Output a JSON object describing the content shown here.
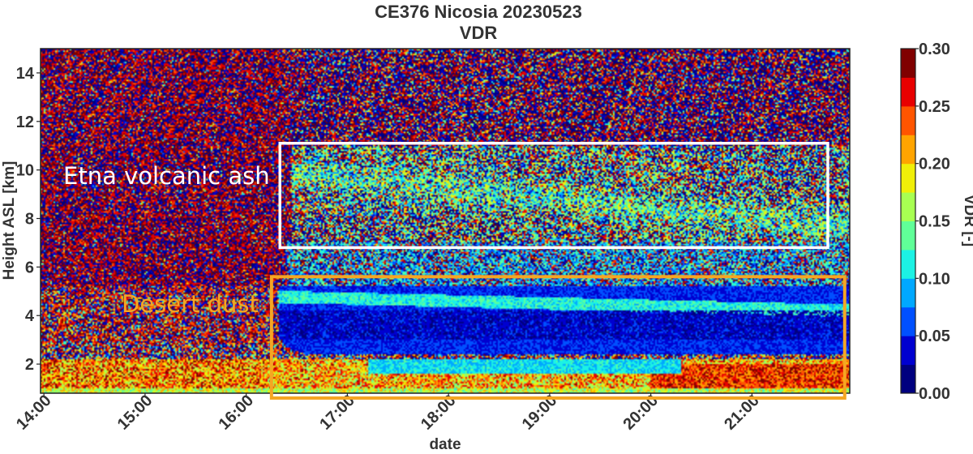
{
  "chart_data": {
    "type": "heatmap",
    "title": "CE376 Nicosia 20230523",
    "subtitle": "VDR",
    "xlabel": "date",
    "ylabel": "Height ASL [km]",
    "x_ticks": [
      "14:00",
      "15:00",
      "16:00",
      "17:00",
      "18:00",
      "19:00",
      "20:00",
      "21:00"
    ],
    "xlim": [
      "13:58",
      "21:58"
    ],
    "y_ticks": [
      2,
      4,
      6,
      8,
      10,
      12,
      14
    ],
    "ylim": [
      0.8,
      15
    ],
    "colorbar": {
      "label": "VDR [-]",
      "range": [
        0.0,
        0.3
      ],
      "ticks": [
        "0.00",
        "0.05",
        "0.10",
        "0.15",
        "0.20",
        "0.25",
        "0.30"
      ],
      "colors": [
        "#00007f",
        "#0000d0",
        "#0050ff",
        "#00a8ff",
        "#1cf2e4",
        "#60ff98",
        "#a8ff52",
        "#f0ef08",
        "#ffa400",
        "#ff5500",
        "#e80000",
        "#800000"
      ]
    },
    "annotations": [
      {
        "label": "Etna volcanic ash",
        "color": "#ffffff",
        "time_range": [
          "16:20",
          "21:45"
        ],
        "height_range_km": [
          6.8,
          11.1
        ]
      },
      {
        "label": "Desert dust",
        "color": "#f5a623",
        "time_range": [
          "16:15",
          "21:55"
        ],
        "height_range_km": [
          0.6,
          5.6
        ]
      }
    ]
  }
}
